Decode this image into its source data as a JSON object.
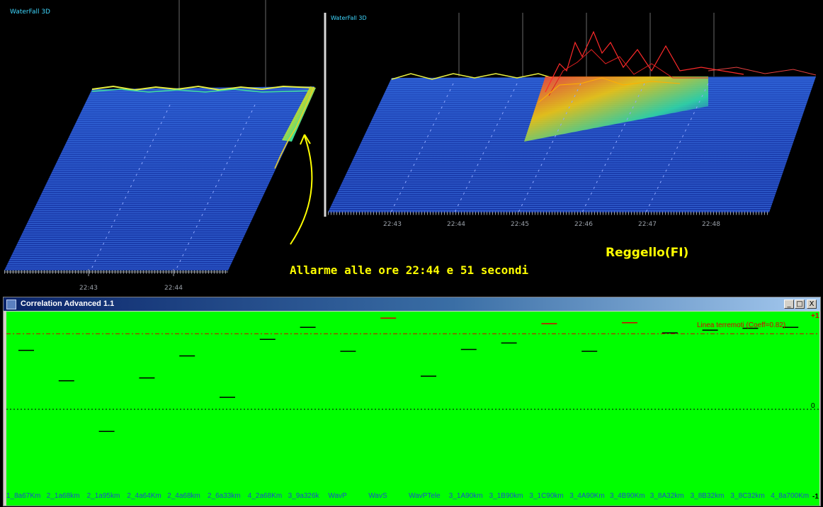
{
  "waterfall_left": {
    "title": "WaterFall 3D",
    "times": [
      "22:43",
      "22:44"
    ]
  },
  "waterfall_right": {
    "title": "WaterFall 3D",
    "times": [
      "22:43",
      "22:44",
      "22:45",
      "22:46",
      "22:47",
      "22:48"
    ]
  },
  "annotation": "Allarme alle ore 22:44 e 51 secondi",
  "location": "Reggello(FI)",
  "window": {
    "title": "Correlation Advanced 1.1",
    "buttons": {
      "minimize": "_",
      "maximize": "□",
      "close": "X"
    }
  },
  "chart_data": {
    "type": "scatter",
    "threshold_label": "Linea terremoti (Coeff=0.82)",
    "threshold": 0.82,
    "y_tick_labels": {
      "top": "+1",
      "middle": "0",
      "bottom": "-1"
    },
    "ylim": [
      -1,
      1
    ],
    "categories": [
      "1_8a67Km",
      "2_1a68km",
      "2_1a95km",
      "2_4a64Km",
      "2_4a68km",
      "2_6a33km",
      "4_2a68Km",
      "3_9a326k",
      "WavP",
      "WavS",
      "WavPTele",
      "3_1A90km",
      "3_1B90km",
      "3_1C90km",
      "3_4A90Km",
      "3_4B90Km",
      "3_8A32km",
      "3_8B32km",
      "3_8C32km",
      "4_8a700Km"
    ],
    "values": [
      0.64,
      0.31,
      -0.24,
      0.34,
      0.58,
      0.13,
      0.76,
      0.89,
      0.63,
      0.99,
      0.36,
      0.65,
      0.72,
      0.93,
      0.63,
      0.94,
      0.83,
      0.86,
      0.88,
      0.89
    ],
    "colors": [
      "#000000",
      "#000000",
      "#000000",
      "#000000",
      "#000000",
      "#000000",
      "#000000",
      "#000000",
      "#000000",
      "#d80000",
      "#000000",
      "#000000",
      "#000000",
      "#d80000",
      "#000000",
      "#d80000",
      "#000000",
      "#000000",
      "#000000",
      "#000000"
    ]
  }
}
